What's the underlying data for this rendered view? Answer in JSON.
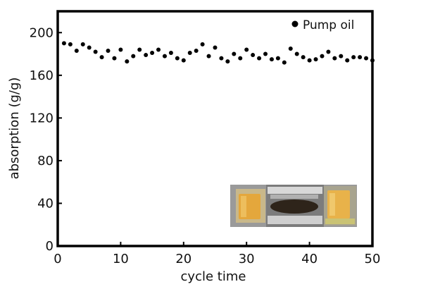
{
  "chart_data": {
    "type": "scatter",
    "title": "",
    "xlabel": "cycle time",
    "ylabel": "absorption (g/g)",
    "xlim": [
      0,
      50
    ],
    "ylim": [
      0,
      220
    ],
    "x_ticks": [
      0,
      10,
      20,
      30,
      40,
      50
    ],
    "y_ticks": [
      0,
      40,
      80,
      120,
      160,
      200
    ],
    "x_tick_labels": [
      "0",
      "10",
      "20",
      "30",
      "40",
      "50"
    ],
    "y_tick_labels": [
      "0",
      "40",
      "80",
      "120",
      "160",
      "200"
    ],
    "grid": false,
    "legend_position": "top-right",
    "series": [
      {
        "name": "Pump oil",
        "color": "#000000",
        "marker": "circle",
        "x": [
          1,
          2,
          3,
          4,
          5,
          6,
          7,
          8,
          9,
          10,
          11,
          12,
          13,
          14,
          15,
          16,
          17,
          18,
          19,
          20,
          21,
          22,
          23,
          24,
          25,
          26,
          27,
          28,
          29,
          30,
          31,
          32,
          33,
          34,
          35,
          36,
          37,
          38,
          39,
          40,
          41,
          42,
          43,
          44,
          45,
          46,
          47,
          48,
          49,
          50
        ],
        "y": [
          190,
          189,
          183,
          189,
          186,
          182,
          177,
          183,
          176,
          184,
          173,
          178,
          184,
          179,
          181,
          184,
          178,
          181,
          176,
          174,
          181,
          183,
          189,
          178,
          186,
          176,
          173,
          180,
          176,
          184,
          179,
          176,
          180,
          175,
          176,
          172,
          185,
          180,
          177,
          174,
          175,
          178,
          182,
          176,
          178,
          174,
          177,
          177,
          176,
          174
        ]
      }
    ],
    "inset": {
      "kind": "photo",
      "description_visible": false
    }
  }
}
